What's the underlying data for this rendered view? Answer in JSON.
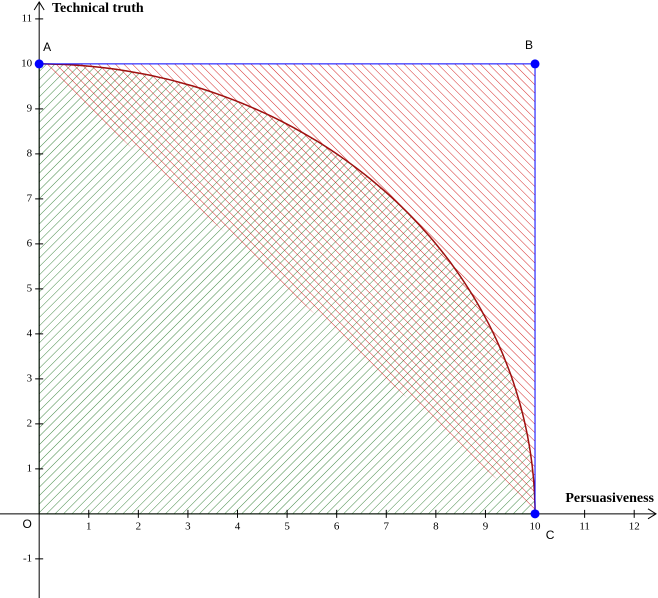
{
  "chart_data": {
    "type": "region",
    "x_label": "Persuasiveness",
    "y_label": "Technical truth",
    "origin_label": "O",
    "xlim": [
      -0.79,
      12.48
    ],
    "ylim": [
      -1.87,
      11.42
    ],
    "xticks": [
      1,
      2,
      3,
      4,
      5,
      6,
      7,
      8,
      9,
      10,
      11,
      12
    ],
    "yticks": [
      -1,
      1,
      2,
      3,
      4,
      5,
      6,
      7,
      8,
      9,
      10,
      11
    ],
    "points": [
      {
        "name": "A",
        "x": 0,
        "y": 10
      },
      {
        "name": "B",
        "x": 10,
        "y": 10
      },
      {
        "name": "C",
        "x": 10,
        "y": 0
      }
    ],
    "curve": {
      "rx": 10,
      "ry": 10,
      "color": "#a01010"
    },
    "inner_color": "#2e7d32",
    "outer_color": "#d01010",
    "point_color": "#0000ff",
    "edge_color": "#0000ff"
  }
}
